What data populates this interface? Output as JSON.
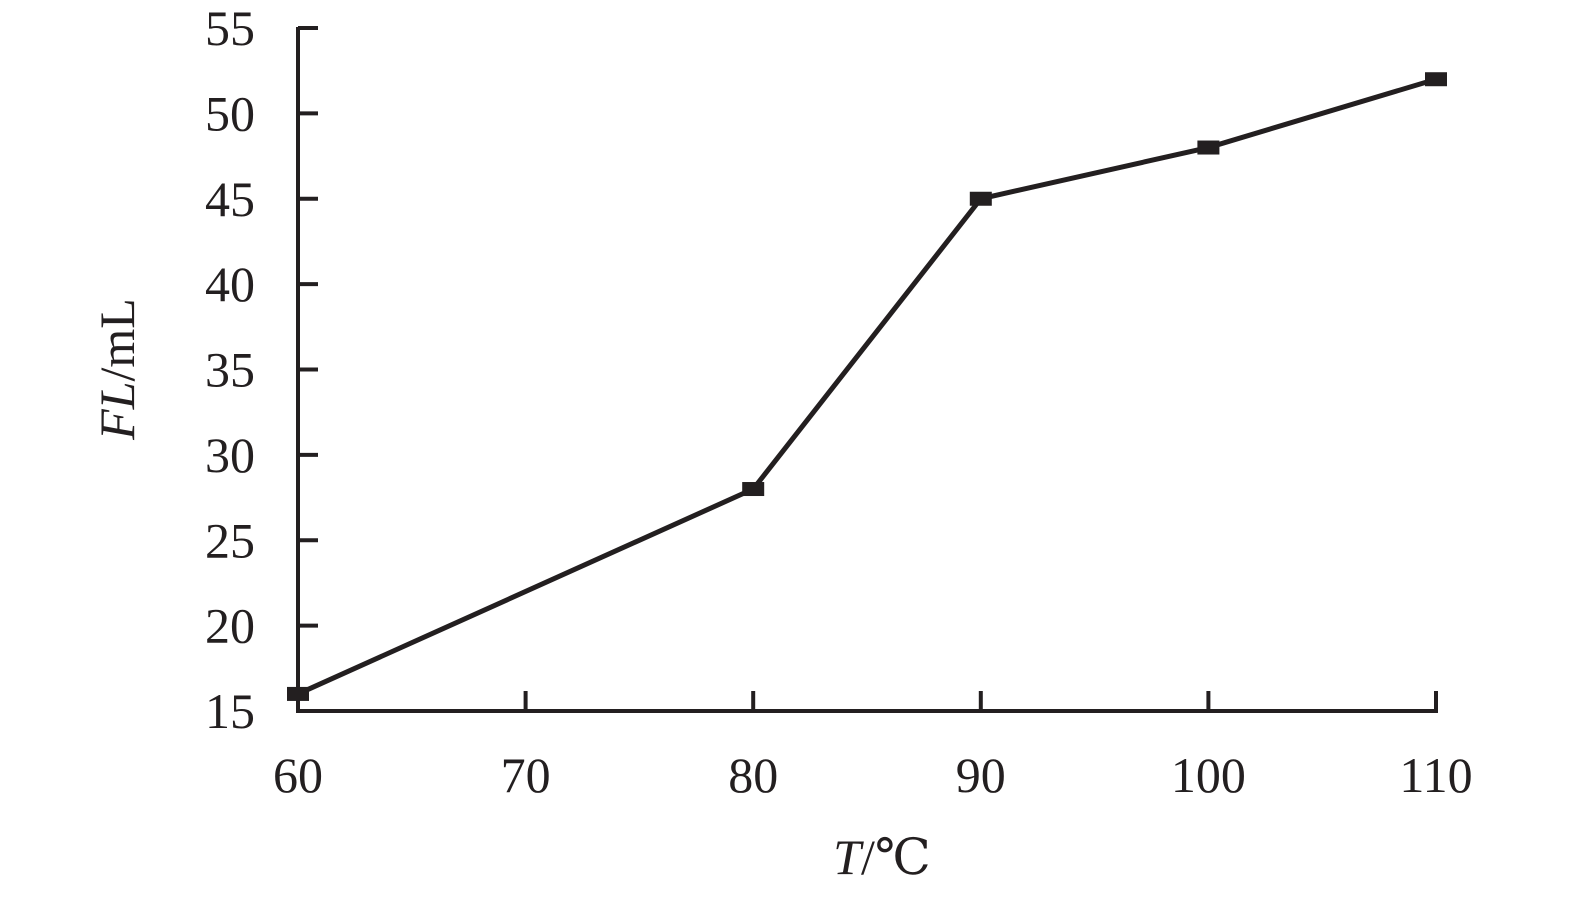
{
  "chart_data": {
    "type": "line",
    "xlabel": "T/℃",
    "xlabel_parts": {
      "var": "T",
      "unit": "/℃"
    },
    "ylabel": "FL/mL",
    "ylabel_parts": {
      "var": "FL",
      "unit": "/mL"
    },
    "xlim": [
      60,
      110
    ],
    "ylim": [
      15,
      55
    ],
    "xticks": [
      60,
      70,
      80,
      90,
      100,
      110
    ],
    "yticks": [
      15,
      20,
      25,
      30,
      35,
      40,
      45,
      50,
      55
    ],
    "xtick_labels": [
      "60",
      "70",
      "80",
      "90",
      "100",
      "110"
    ],
    "ytick_labels": [
      "15",
      "20",
      "25",
      "30",
      "35",
      "40",
      "45",
      "50",
      "55"
    ],
    "grid": false,
    "series": [
      {
        "x": [
          60,
          80,
          90,
          100,
          110
        ],
        "values": [
          16,
          28,
          45,
          48,
          52
        ],
        "color": "#231f20",
        "marker": "square"
      }
    ]
  }
}
